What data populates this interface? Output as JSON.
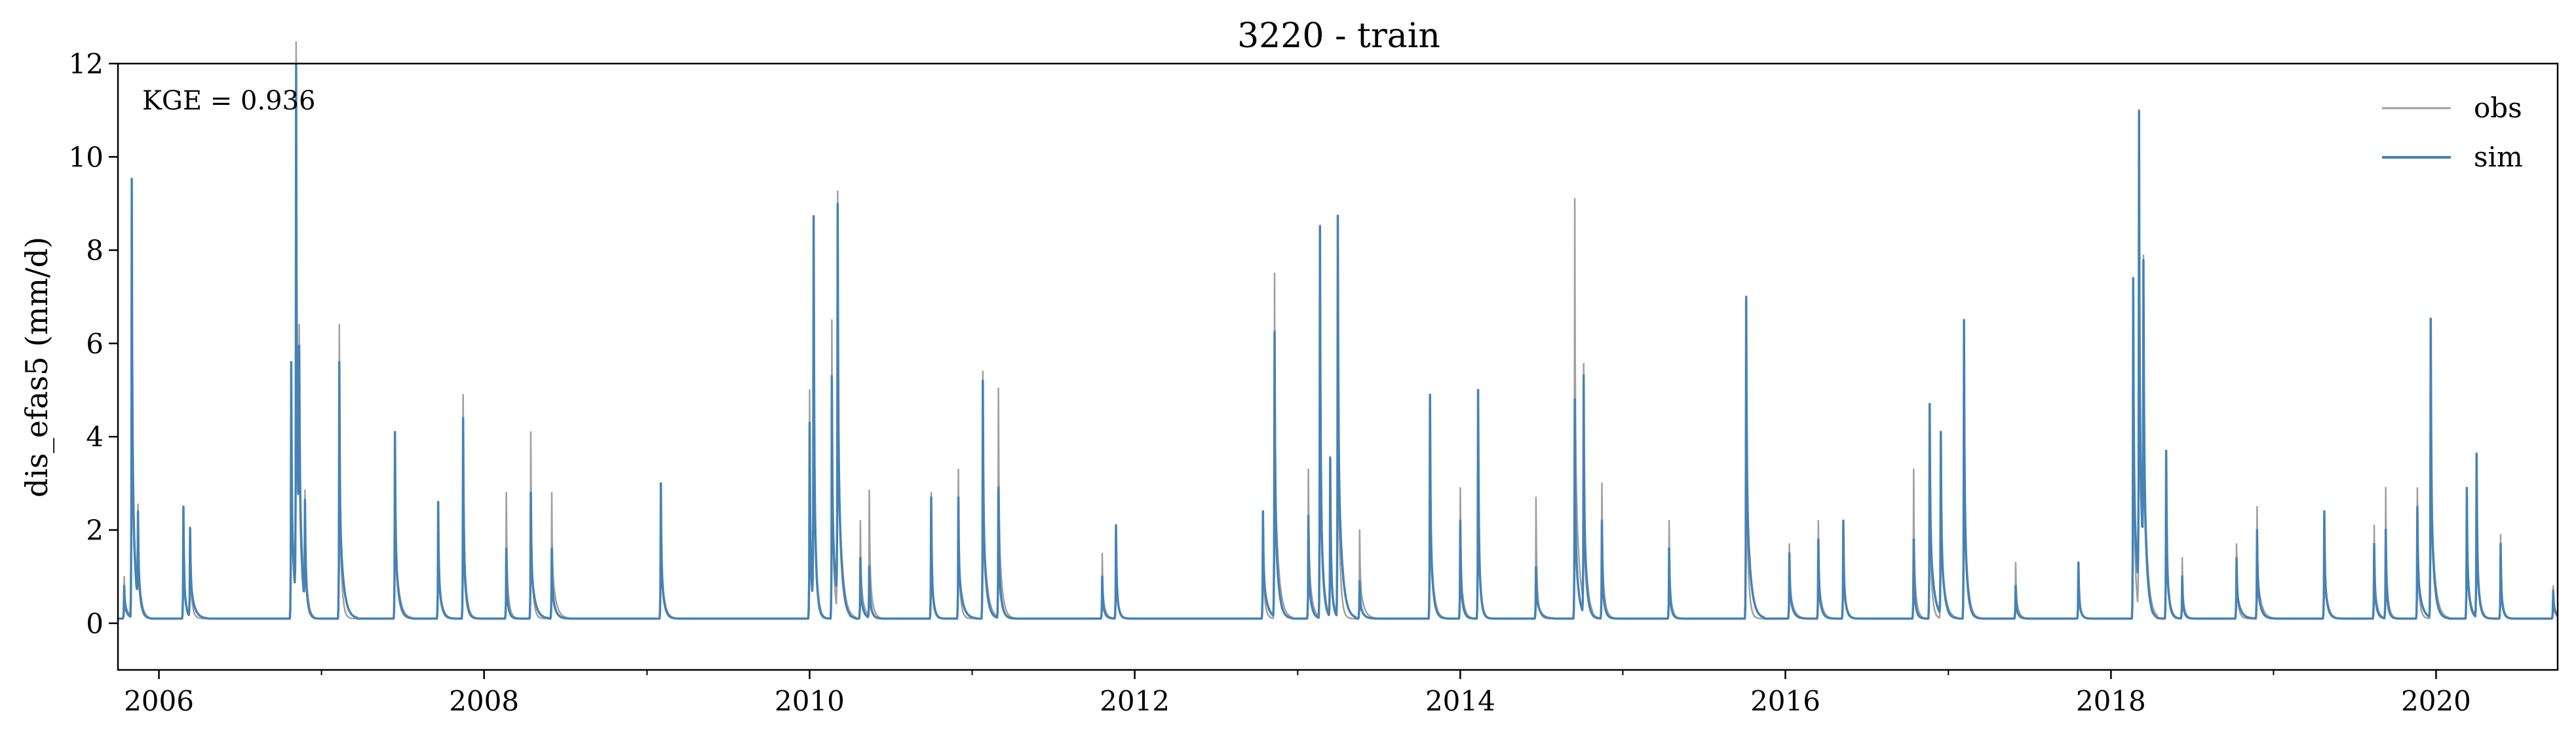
{
  "chart_data": {
    "type": "line",
    "title": "3220 - train",
    "xlabel": "",
    "ylabel": "dis_efas5 (mm/d)",
    "annotation": "KGE = 0.936",
    "xlim": [
      "2005-10-01",
      "2020-09-30"
    ],
    "ylim": [
      -1,
      12
    ],
    "yticks": [
      0,
      2,
      4,
      6,
      8,
      10,
      12
    ],
    "xticks": [
      "2006",
      "2008",
      "2010",
      "2012",
      "2014",
      "2016",
      "2018",
      "2020"
    ],
    "grid": false,
    "legend": "top-right",
    "baseline": 0.1,
    "series": [
      {
        "name": "obs",
        "color": "#a0a0a0",
        "events": [
          [
            "2005-10-15",
            1.0
          ],
          [
            "2005-11-01",
            9.3
          ],
          [
            "2005-11-15",
            2.0
          ],
          [
            "2006-02-25",
            2.5
          ],
          [
            "2006-03-12",
            2.0
          ],
          [
            "2006-10-25",
            5.6
          ],
          [
            "2006-11-05",
            11.8
          ],
          [
            "2006-11-12",
            4.2
          ],
          [
            "2006-11-25",
            2.3
          ],
          [
            "2007-02-10",
            6.4
          ],
          [
            "2007-06-15",
            4.1
          ],
          [
            "2007-09-20",
            2.6
          ],
          [
            "2007-11-15",
            4.9
          ],
          [
            "2008-02-20",
            2.8
          ],
          [
            "2008-04-15",
            4.1
          ],
          [
            "2008-06-01",
            2.8
          ],
          [
            "2009-02-01",
            3.0
          ],
          [
            "2010-01-01",
            5.0
          ],
          [
            "2010-01-10",
            8.0
          ],
          [
            "2010-02-20",
            6.5
          ],
          [
            "2010-03-05",
            9.1
          ],
          [
            "2010-04-25",
            2.2
          ],
          [
            "2010-05-15",
            2.8
          ],
          [
            "2010-10-01",
            2.8
          ],
          [
            "2010-12-01",
            3.3
          ],
          [
            "2011-01-25",
            5.4
          ],
          [
            "2011-03-01",
            5.0
          ],
          [
            "2011-10-20",
            1.5
          ],
          [
            "2011-11-20",
            2.1
          ],
          [
            "2012-10-15",
            2.4
          ],
          [
            "2012-11-10",
            7.5
          ],
          [
            "2013-01-25",
            3.3
          ],
          [
            "2013-02-20",
            8.5
          ],
          [
            "2013-03-15",
            3.5
          ],
          [
            "2013-04-01",
            8.6
          ],
          [
            "2013-05-20",
            2.0
          ],
          [
            "2013-10-25",
            4.9
          ],
          [
            "2014-01-01",
            2.9
          ],
          [
            "2014-02-10",
            5.0
          ],
          [
            "2014-06-20",
            2.7
          ],
          [
            "2014-09-15",
            9.1
          ],
          [
            "2014-10-05",
            5.2
          ],
          [
            "2014-11-15",
            3.0
          ],
          [
            "2015-04-15",
            2.2
          ],
          [
            "2015-10-05",
            7.0
          ],
          [
            "2016-01-10",
            1.7
          ],
          [
            "2016-03-15",
            2.2
          ],
          [
            "2016-05-10",
            2.2
          ],
          [
            "2016-10-15",
            3.3
          ],
          [
            "2016-11-20",
            4.7
          ],
          [
            "2016-12-15",
            4.0
          ],
          [
            "2017-02-05",
            6.5
          ],
          [
            "2017-06-01",
            1.3
          ],
          [
            "2017-10-20",
            1.3
          ],
          [
            "2018-02-20",
            7.4
          ],
          [
            "2018-03-05",
            10.2
          ],
          [
            "2018-03-15",
            6.5
          ],
          [
            "2018-05-05",
            3.7
          ],
          [
            "2018-06-10",
            1.4
          ],
          [
            "2018-10-10",
            1.7
          ],
          [
            "2018-11-25",
            2.5
          ],
          [
            "2019-04-25",
            2.4
          ],
          [
            "2019-08-15",
            2.1
          ],
          [
            "2019-09-10",
            2.9
          ],
          [
            "2019-11-20",
            2.9
          ],
          [
            "2019-12-20",
            6.5
          ],
          [
            "2020-03-10",
            2.9
          ],
          [
            "2020-04-01",
            3.6
          ],
          [
            "2020-05-25",
            1.9
          ],
          [
            "2020-09-20",
            0.8
          ]
        ]
      },
      {
        "name": "sim",
        "color": "#4682b4",
        "events": [
          [
            "2005-10-15",
            0.8
          ],
          [
            "2005-11-01",
            9.5
          ],
          [
            "2005-11-15",
            2.0
          ],
          [
            "2006-02-25",
            2.5
          ],
          [
            "2006-03-12",
            2.0
          ],
          [
            "2006-10-25",
            5.6
          ],
          [
            "2006-11-05",
            11.5
          ],
          [
            "2006-11-12",
            4.2
          ],
          [
            "2006-11-25",
            2.3
          ],
          [
            "2007-02-10",
            5.6
          ],
          [
            "2007-06-15",
            4.1
          ],
          [
            "2007-09-20",
            2.6
          ],
          [
            "2007-11-15",
            4.4
          ],
          [
            "2008-02-20",
            1.6
          ],
          [
            "2008-04-15",
            2.8
          ],
          [
            "2008-06-01",
            1.6
          ],
          [
            "2009-02-01",
            3.0
          ],
          [
            "2010-01-01",
            4.3
          ],
          [
            "2010-01-10",
            8.4
          ],
          [
            "2010-02-20",
            5.3
          ],
          [
            "2010-03-05",
            8.5
          ],
          [
            "2010-04-25",
            1.4
          ],
          [
            "2010-05-15",
            1.2
          ],
          [
            "2010-10-01",
            2.7
          ],
          [
            "2010-12-01",
            2.7
          ],
          [
            "2011-01-25",
            5.2
          ],
          [
            "2011-03-01",
            2.9
          ],
          [
            "2011-10-20",
            1.0
          ],
          [
            "2011-11-20",
            2.1
          ],
          [
            "2012-10-15",
            2.4
          ],
          [
            "2012-11-10",
            6.2
          ],
          [
            "2013-01-25",
            2.3
          ],
          [
            "2013-02-20",
            8.5
          ],
          [
            "2013-03-15",
            3.5
          ],
          [
            "2013-04-01",
            8.7
          ],
          [
            "2013-05-20",
            0.9
          ],
          [
            "2013-10-25",
            4.9
          ],
          [
            "2014-01-01",
            2.2
          ],
          [
            "2014-02-10",
            5.0
          ],
          [
            "2014-06-20",
            1.2
          ],
          [
            "2014-09-15",
            4.8
          ],
          [
            "2014-10-05",
            5.2
          ],
          [
            "2014-11-15",
            2.2
          ],
          [
            "2015-04-15",
            1.6
          ],
          [
            "2015-10-05",
            7.0
          ],
          [
            "2016-01-10",
            1.5
          ],
          [
            "2016-03-15",
            1.8
          ],
          [
            "2016-05-10",
            2.2
          ],
          [
            "2016-10-15",
            1.8
          ],
          [
            "2016-11-20",
            4.7
          ],
          [
            "2016-12-15",
            4.0
          ],
          [
            "2017-02-05",
            6.5
          ],
          [
            "2017-06-01",
            0.8
          ],
          [
            "2017-10-20",
            1.3
          ],
          [
            "2018-02-20",
            7.4
          ],
          [
            "2018-03-05",
            10.3
          ],
          [
            "2018-03-15",
            6.5
          ],
          [
            "2018-05-05",
            3.7
          ],
          [
            "2018-06-10",
            1.0
          ],
          [
            "2018-10-10",
            1.4
          ],
          [
            "2018-11-25",
            2.0
          ],
          [
            "2019-04-25",
            2.4
          ],
          [
            "2019-08-15",
            1.7
          ],
          [
            "2019-09-10",
            2.0
          ],
          [
            "2019-11-20",
            2.5
          ],
          [
            "2019-12-20",
            6.5
          ],
          [
            "2020-03-10",
            2.9
          ],
          [
            "2020-04-01",
            3.6
          ],
          [
            "2020-05-25",
            1.7
          ],
          [
            "2020-09-20",
            0.7
          ]
        ]
      }
    ]
  }
}
